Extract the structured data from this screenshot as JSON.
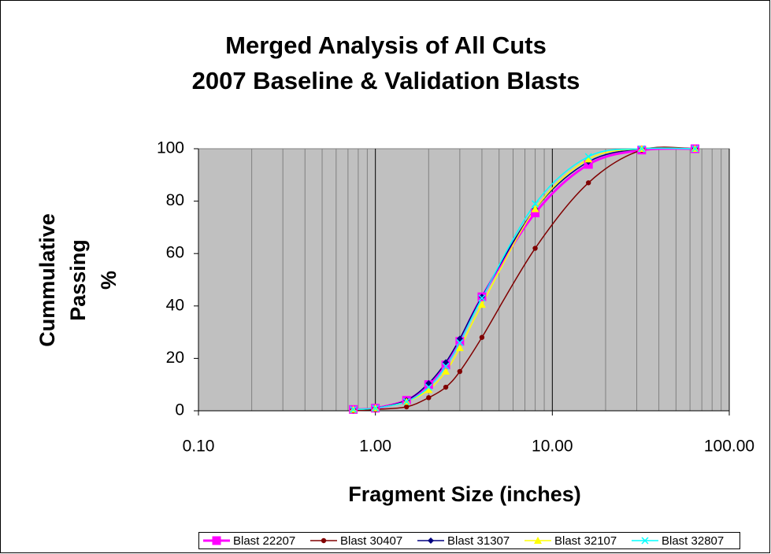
{
  "chart_data": {
    "type": "line",
    "title": [
      "Merged Analysis of All Cuts",
      "2007 Baseline & Validation Blasts"
    ],
    "x_label": "Fragment Size (inches)",
    "y_label": [
      "Cummulative",
      "Passing",
      "%"
    ],
    "x": [
      0.75,
      1,
      1.5,
      2,
      2.5,
      3,
      4,
      8,
      16,
      32,
      64
    ],
    "xlim": [
      0.1,
      100
    ],
    "xticks": [
      {
        "value": 0.1,
        "label": "0.10"
      },
      {
        "value": 1,
        "label": "1.00"
      },
      {
        "value": 10,
        "label": "10.00"
      },
      {
        "value": 100,
        "label": "100.00"
      }
    ],
    "x_log": true,
    "x_minor_grid": true,
    "ylim": [
      0,
      100
    ],
    "yticks": [
      0,
      20,
      40,
      60,
      80,
      100
    ],
    "plot_background": "#c0c0c0",
    "legend": "bottom",
    "series": [
      {
        "name": "Blast 22207",
        "color": "#ff00ff",
        "marker": "square",
        "values": [
          0.5,
          1,
          4,
          10,
          17.5,
          26.5,
          43.5,
          75.5,
          94,
          99.5,
          100
        ]
      },
      {
        "name": "Blast 30407",
        "color": "#800000",
        "marker": "circle",
        "values": [
          0,
          0.5,
          1.5,
          5,
          9,
          15,
          28,
          62,
          87,
          99.5,
          100
        ]
      },
      {
        "name": "Blast 31307",
        "color": "#000080",
        "marker": "diamond",
        "values": [
          0.5,
          1,
          4,
          10.5,
          18.5,
          27.5,
          43.5,
          77,
          95,
          100,
          100
        ]
      },
      {
        "name": "Blast 32107",
        "color": "#ffff00",
        "marker": "triangle",
        "values": [
          0.5,
          1,
          3.5,
          8,
          15,
          24,
          40.5,
          77,
          96,
          100,
          100
        ]
      },
      {
        "name": "Blast 32807",
        "color": "#00ffff",
        "marker": "x",
        "values": [
          0.5,
          1,
          3.5,
          9,
          17,
          26,
          43,
          79,
          97,
          100,
          100
        ]
      }
    ]
  }
}
